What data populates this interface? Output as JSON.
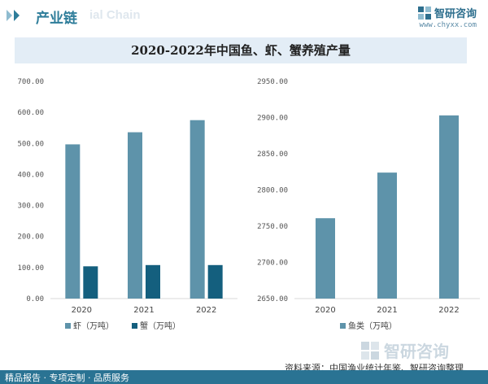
{
  "header": {
    "category_title": "产业链",
    "watermark_text": "ial Chain",
    "brand_name": "智研咨询",
    "brand_url": "www.chyxx.com"
  },
  "title": "2020-2022年中国鱼、虾、蟹养殖产量",
  "source": "资料来源：中国渔业统计年鉴、智研咨询整理",
  "footer": "精品报告 · 专项定制 · 品质服务",
  "watermark_logo_text": "智研咨询",
  "colors": {
    "bar_light": "#5e93aa",
    "bar_dark": "#145f7e",
    "footer": "#2a7393",
    "band": "#e3edf6"
  },
  "chart_data": [
    {
      "type": "bar",
      "categories": [
        "2020",
        "2021",
        "2022"
      ],
      "series": [
        {
          "name": "虾（万吨）",
          "values": [
            497,
            536,
            575
          ],
          "color": "#5e93aa"
        },
        {
          "name": "蟹（万吨）",
          "values": [
            104,
            108,
            108
          ],
          "color": "#145f7e"
        }
      ],
      "ylim": [
        0,
        700
      ],
      "yticks": [
        "0.00",
        "100.00",
        "200.00",
        "300.00",
        "400.00",
        "500.00",
        "600.00",
        "700.00"
      ],
      "grid": false,
      "legend": "bottom"
    },
    {
      "type": "bar",
      "categories": [
        "2020",
        "2021",
        "2022"
      ],
      "series": [
        {
          "name": "鱼类（万吨）",
          "values": [
            2761,
            2824,
            2903
          ],
          "color": "#5e93aa"
        }
      ],
      "ylim": [
        2650,
        2950
      ],
      "yticks": [
        "2650.00",
        "2700.00",
        "2750.00",
        "2800.00",
        "2850.00",
        "2900.00",
        "2950.00"
      ],
      "grid": false,
      "legend": "bottom"
    }
  ]
}
